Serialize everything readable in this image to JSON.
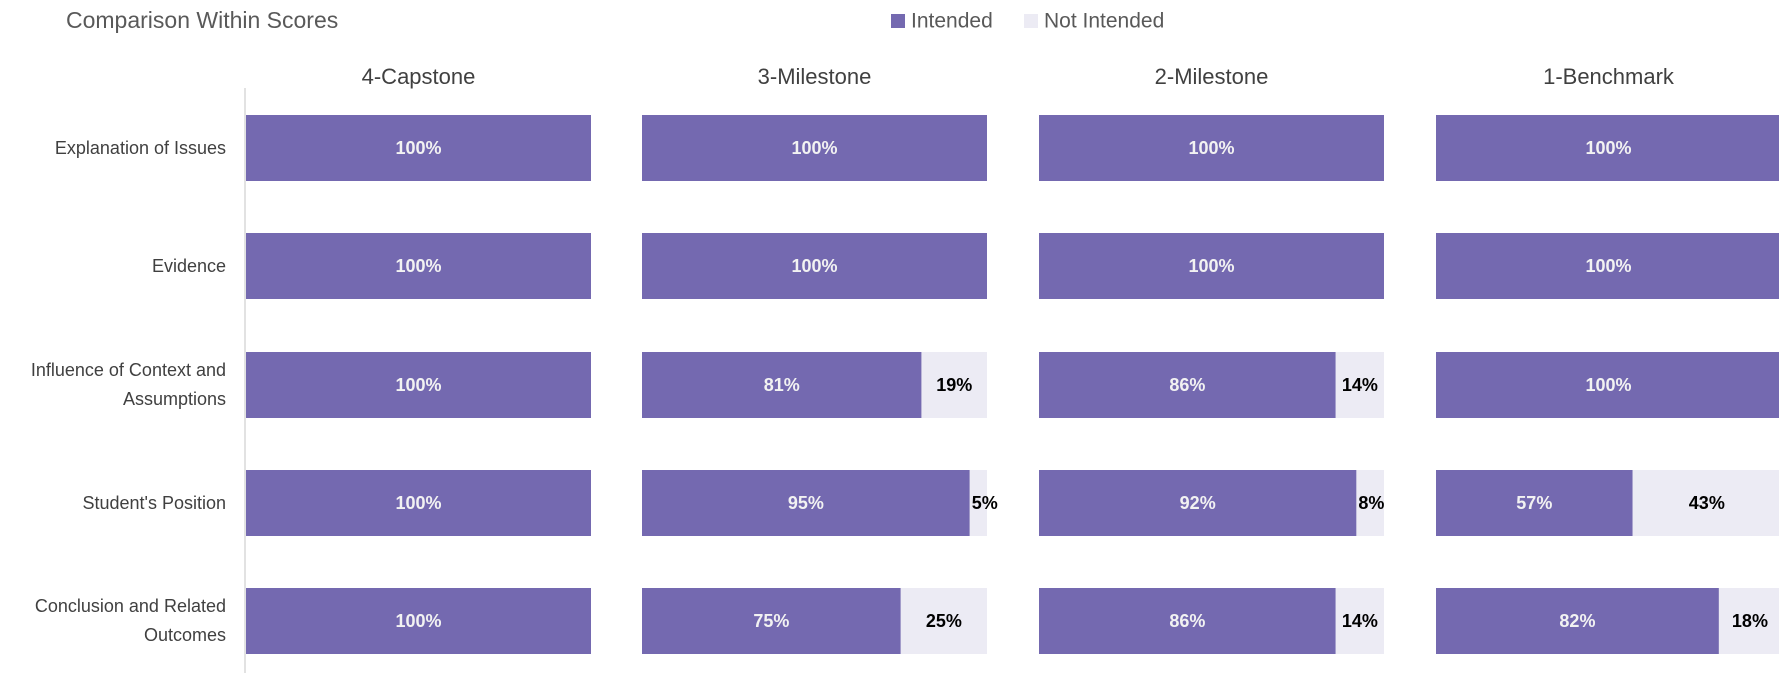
{
  "chart_data": {
    "type": "bar",
    "stacked": true,
    "orientation": "horizontal",
    "title": "Comparison Within Scores",
    "categories": [
      "Explanation of Issues",
      "Evidence",
      "Influence of Context and Assumptions",
      "Student's Position",
      "Conclusion and Related Outcomes"
    ],
    "series": [
      {
        "name": "Intended",
        "color": "#7469b0"
      },
      {
        "name": "Not Intended",
        "color": "#ecebf4"
      }
    ],
    "xlim": [
      0,
      100
    ],
    "panels": [
      {
        "title": "4-Capstone",
        "series": [
          {
            "values": [
              100,
              100,
              100,
              100,
              100
            ],
            "value_labels": [
              "100%",
              "100%",
              "100%",
              "100%",
              "100%"
            ]
          },
          {
            "values": [
              0,
              0,
              0,
              0,
              0
            ],
            "value_labels": [
              null,
              null,
              null,
              null,
              null
            ]
          }
        ]
      },
      {
        "title": "3-Milestone",
        "series": [
          {
            "values": [
              100,
              100,
              81,
              95,
              75
            ],
            "value_labels": [
              "100%",
              "100%",
              "81%",
              "95%",
              "75%"
            ]
          },
          {
            "values": [
              0,
              0,
              19,
              5,
              25
            ],
            "value_labels": [
              null,
              null,
              "19%",
              "5%",
              "25%"
            ]
          }
        ]
      },
      {
        "title": "2-Milestone",
        "series": [
          {
            "values": [
              100,
              100,
              86,
              92,
              86
            ],
            "value_labels": [
              "100%",
              "100%",
              "86%",
              "92%",
              "86%"
            ]
          },
          {
            "values": [
              0,
              0,
              14,
              8,
              14
            ],
            "value_labels": [
              null,
              null,
              "14%",
              "8%",
              "14%"
            ]
          }
        ]
      },
      {
        "title": "1-Benchmark",
        "series": [
          {
            "values": [
              100,
              100,
              100,
              57,
              82
            ],
            "value_labels": [
              "100%",
              "100%",
              "100%",
              "57%",
              "82%"
            ]
          },
          {
            "values": [
              0,
              0,
              0,
              43,
              18
            ],
            "value_labels": [
              null,
              null,
              null,
              "43%",
              "18%"
            ]
          }
        ]
      }
    ]
  }
}
